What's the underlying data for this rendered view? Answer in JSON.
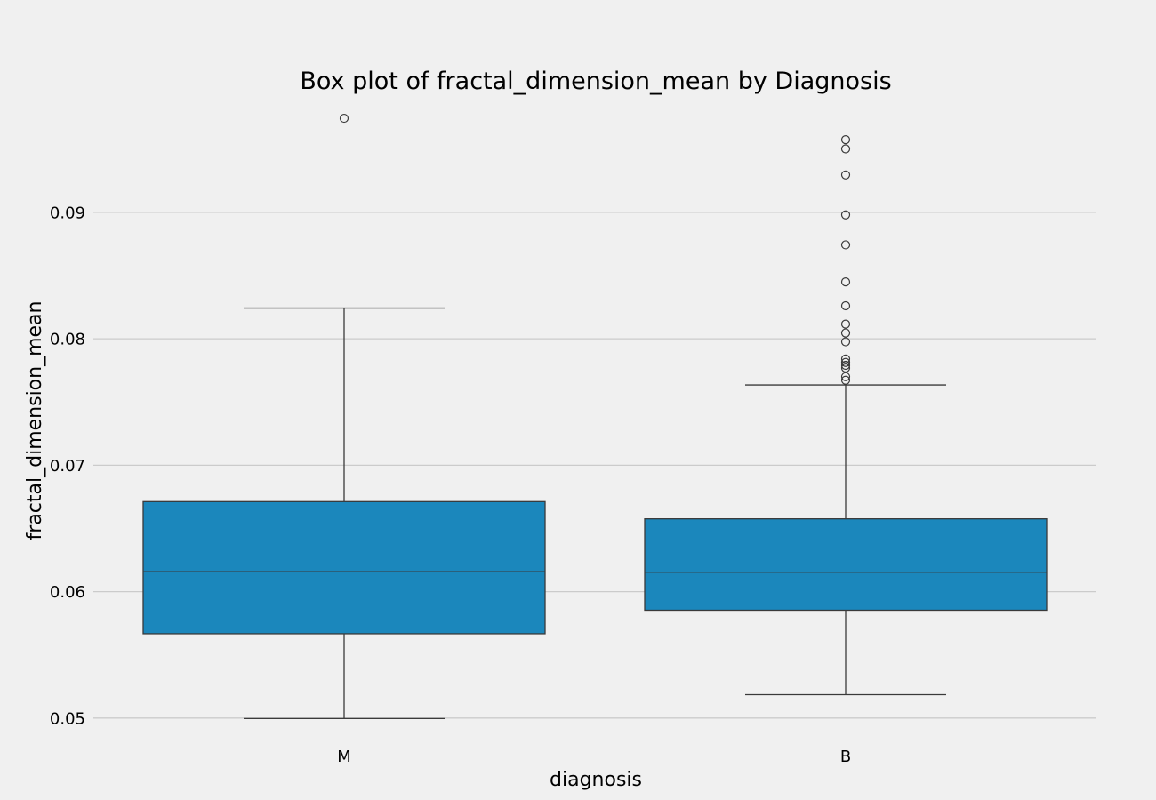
{
  "colors": {
    "background": "#f0f0f0",
    "box_fill": "#1b87bc",
    "line": "#3a3a3a",
    "grid": "#cbcbcb"
  },
  "chart_data": {
    "type": "box",
    "title": "Box plot of fractal_dimension_mean by Diagnosis",
    "xlabel": "diagnosis",
    "ylabel": "fractal_dimension_mean",
    "ylim": [
      0.0483,
      0.0985
    ],
    "yticks": [
      0.05,
      0.06,
      0.07,
      0.08,
      0.09
    ],
    "ytick_labels": [
      "0.05",
      "0.06",
      "0.07",
      "0.08",
      "0.09"
    ],
    "grid": "horizontal",
    "categories": [
      "M",
      "B"
    ],
    "boxes": [
      {
        "category": "M",
        "whisker_low": 0.04996,
        "q1": 0.05667,
        "median": 0.06158,
        "q3": 0.06712,
        "whisker_high": 0.08243,
        "outliers": [
          0.09744
        ]
      },
      {
        "category": "B",
        "whisker_low": 0.05185,
        "q1": 0.05853,
        "median": 0.06154,
        "q3": 0.06576,
        "whisker_high": 0.07635,
        "outliers": [
          0.09575,
          0.09502,
          0.09296,
          0.0898,
          0.08743,
          0.0845,
          0.08261,
          0.08116,
          0.08046,
          0.07976,
          0.0784,
          0.07813,
          0.0779,
          0.07769,
          0.077,
          0.07672
        ]
      }
    ]
  }
}
